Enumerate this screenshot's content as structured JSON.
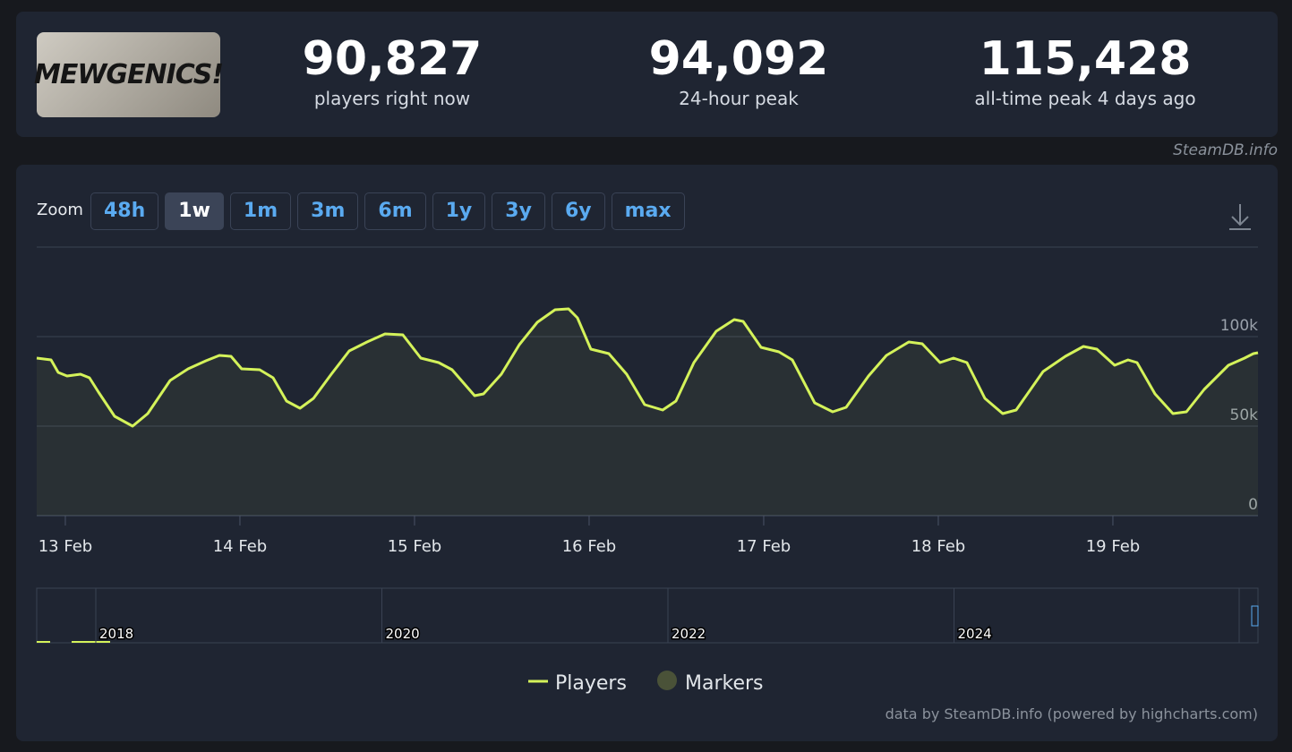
{
  "header": {
    "logo_text": "MEWGENICS!",
    "stats": [
      {
        "value": "90,827",
        "label": "players right now"
      },
      {
        "value": "94,092",
        "label": "24-hour peak"
      },
      {
        "value": "115,428",
        "label": "all-time peak 4 days ago"
      }
    ],
    "source": "SteamDB.info"
  },
  "zoom": {
    "label": "Zoom",
    "options": [
      "48h",
      "1w",
      "1m",
      "3m",
      "6m",
      "1y",
      "3y",
      "6y",
      "max"
    ],
    "active": 1
  },
  "chart_data": {
    "type": "line",
    "x": [
      -0.164,
      -0.082,
      -0.041,
      0.01,
      0.087,
      0.138,
      0.19,
      0.282,
      0.385,
      0.472,
      0.6,
      0.703,
      0.805,
      0.882,
      0.949,
      1.01,
      1.113,
      1.19,
      1.267,
      1.344,
      1.421,
      1.523,
      1.626,
      1.728,
      1.831,
      1.933,
      2.036,
      2.138,
      2.215,
      2.344,
      2.395,
      2.497,
      2.6,
      2.703,
      2.805,
      2.882,
      2.933,
      3.01,
      3.113,
      3.215,
      3.318,
      3.421,
      3.497,
      3.6,
      3.728,
      3.831,
      3.882,
      3.985,
      4.087,
      4.164,
      4.292,
      4.395,
      4.472,
      4.6,
      4.703,
      4.831,
      4.908,
      5.01,
      5.087,
      5.164,
      5.267,
      5.369,
      5.446,
      5.6,
      5.728,
      5.831,
      5.908,
      6.01,
      6.087,
      6.138,
      6.241,
      6.344,
      6.421,
      6.523,
      6.662,
      6.754,
      6.805,
      6.831
    ],
    "series": [
      {
        "name": "Players",
        "color": "#d4f25a",
        "values": [
          88000,
          87000,
          80000,
          78000,
          79000,
          77000,
          69000,
          55500,
          50000,
          57000,
          75500,
          82000,
          86500,
          89500,
          89000,
          82000,
          81500,
          77000,
          64000,
          60000,
          65500,
          79000,
          92000,
          97000,
          101500,
          101000,
          88000,
          85500,
          81500,
          67000,
          68000,
          79000,
          95500,
          108000,
          115000,
          115500,
          110500,
          93000,
          90500,
          79000,
          62000,
          59000,
          64000,
          85500,
          103000,
          109500,
          108500,
          94000,
          91500,
          87000,
          63000,
          58000,
          60500,
          78000,
          89500,
          97000,
          96000,
          85500,
          88000,
          85500,
          65500,
          57000,
          59000,
          80500,
          89000,
          94500,
          93000,
          84000,
          87000,
          85500,
          68000,
          57000,
          58000,
          70500,
          84000,
          88000,
          90500,
          91000
        ]
      }
    ],
    "marker_series": {
      "name": "Markers",
      "color": "#4a5238"
    },
    "xlim": [
      -0.164,
      6.831
    ],
    "ylim": [
      0,
      150000
    ],
    "xticks": [
      {
        "value": 0,
        "label": "13 Feb"
      },
      {
        "value": 1,
        "label": "14 Feb"
      },
      {
        "value": 2,
        "label": "15 Feb"
      },
      {
        "value": 3,
        "label": "16 Feb"
      },
      {
        "value": 4,
        "label": "17 Feb"
      },
      {
        "value": 5,
        "label": "18 Feb"
      },
      {
        "value": 6,
        "label": "19 Feb"
      }
    ],
    "yticks": [
      0,
      {
        "value": 50000,
        "label": "50k"
      },
      {
        "value": 100000,
        "label": "100k"
      }
    ],
    "grid": true
  },
  "navigator": {
    "labels": [
      "2018",
      "2020",
      "2022",
      "2024"
    ]
  },
  "credit": "data by SteamDB.info (powered by highcharts.com)"
}
